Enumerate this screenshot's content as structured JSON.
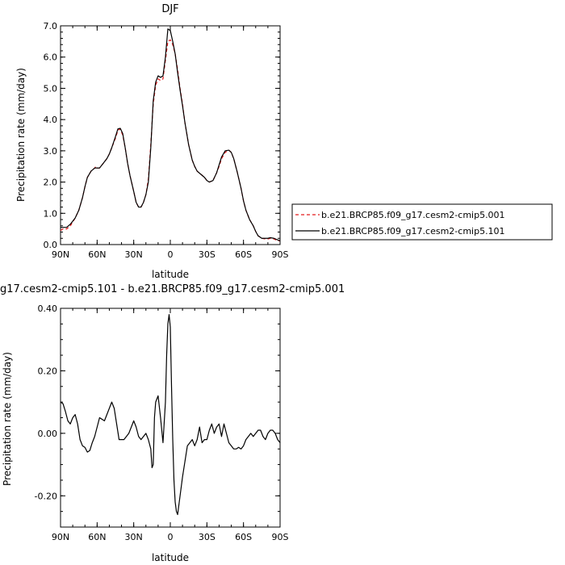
{
  "chart_data": [
    {
      "type": "line",
      "title": "DJF",
      "xlabel": "latitude",
      "ylabel": "Precipitation rate (mm/day)",
      "xlim": [
        90,
        -90
      ],
      "ylim": [
        0,
        7
      ],
      "x_ticks": [
        {
          "value": 90,
          "label": "90N"
        },
        {
          "value": 60,
          "label": "60N"
        },
        {
          "value": 30,
          "label": "30N"
        },
        {
          "value": 0,
          "label": "0"
        },
        {
          "value": -30,
          "label": "30S"
        },
        {
          "value": -60,
          "label": "60S"
        },
        {
          "value": -90,
          "label": "90S"
        }
      ],
      "y_ticks": [
        {
          "value": 0,
          "label": "0.0"
        },
        {
          "value": 1,
          "label": "1.0"
        },
        {
          "value": 2,
          "label": "2.0"
        },
        {
          "value": 3,
          "label": "3.0"
        },
        {
          "value": 4,
          "label": "4.0"
        },
        {
          "value": 5,
          "label": "5.0"
        },
        {
          "value": 6,
          "label": "6.0"
        },
        {
          "value": 7,
          "label": "7.0"
        }
      ],
      "legend_position": "right",
      "series": [
        {
          "name": "b.e21.BRCP85.f09_g17.cesm2-cmip5.001",
          "color": "#e41a1c",
          "dash": "dashed",
          "x": [
            90,
            88,
            85,
            82,
            80,
            78,
            75,
            72,
            70,
            68,
            65,
            62,
            61,
            60,
            58,
            55,
            52,
            50,
            48,
            45,
            43,
            41,
            39,
            37,
            35,
            33,
            30,
            28,
            26,
            24,
            22,
            20,
            18,
            16,
            14,
            12,
            10,
            8,
            6,
            4,
            2,
            0,
            -2,
            -4,
            -6,
            -8,
            -10,
            -12,
            -15,
            -18,
            -20,
            -22,
            -25,
            -28,
            -30,
            -32,
            -35,
            -38,
            -40,
            -42,
            -45,
            -48,
            -50,
            -52,
            -55,
            -58,
            -60,
            -62,
            -65,
            -68,
            -70,
            -72,
            -75,
            -78,
            -80,
            -82,
            -85,
            -88,
            -90
          ],
          "y": [
            0.45,
            0.5,
            0.5,
            0.6,
            0.72,
            0.85,
            1.1,
            1.5,
            1.85,
            2.15,
            2.35,
            2.45,
            2.5,
            2.45,
            2.45,
            2.6,
            2.75,
            2.9,
            3.1,
            3.4,
            3.65,
            3.7,
            3.5,
            3.1,
            2.6,
            2.2,
            1.7,
            1.35,
            1.2,
            1.2,
            1.35,
            1.6,
            2.1,
            3.2,
            4.5,
            5.1,
            5.3,
            5.25,
            5.3,
            5.9,
            6.5,
            6.55,
            6.4,
            6.1,
            5.6,
            5.0,
            4.5,
            3.9,
            3.2,
            2.7,
            2.5,
            2.35,
            2.25,
            2.15,
            2.05,
            2.0,
            2.05,
            2.3,
            2.5,
            2.75,
            2.95,
            3.02,
            2.95,
            2.75,
            2.3,
            1.8,
            1.4,
            1.1,
            0.8,
            0.6,
            0.42,
            0.28,
            0.2,
            0.18,
            0.18,
            0.2,
            0.18,
            0.12,
            0.12
          ]
        },
        {
          "name": "b.e21.BRCP85.f09_g17.cesm2-cmip5.101",
          "color": "#000000",
          "dash": "solid",
          "x": [
            90,
            88,
            85,
            82,
            80,
            78,
            75,
            72,
            70,
            68,
            65,
            62,
            61,
            60,
            58,
            55,
            52,
            50,
            48,
            45,
            43,
            41,
            39,
            37,
            35,
            33,
            30,
            28,
            26,
            24,
            22,
            20,
            18,
            16,
            14,
            12,
            10,
            8,
            6,
            4,
            2,
            0,
            -2,
            -4,
            -6,
            -8,
            -10,
            -12,
            -15,
            -18,
            -20,
            -22,
            -25,
            -28,
            -30,
            -32,
            -35,
            -38,
            -40,
            -42,
            -45,
            -48,
            -50,
            -52,
            -55,
            -58,
            -60,
            -62,
            -65,
            -68,
            -70,
            -72,
            -75,
            -78,
            -80,
            -82,
            -85,
            -88,
            -90
          ],
          "y": [
            0.55,
            0.55,
            0.55,
            0.65,
            0.75,
            0.85,
            1.1,
            1.5,
            1.85,
            2.15,
            2.35,
            2.45,
            2.45,
            2.45,
            2.45,
            2.6,
            2.75,
            2.9,
            3.1,
            3.45,
            3.7,
            3.72,
            3.55,
            3.1,
            2.6,
            2.2,
            1.7,
            1.35,
            1.2,
            1.2,
            1.35,
            1.6,
            2.0,
            3.1,
            4.6,
            5.2,
            5.4,
            5.35,
            5.4,
            6.0,
            6.9,
            6.85,
            6.5,
            6.1,
            5.5,
            4.95,
            4.45,
            3.9,
            3.2,
            2.7,
            2.5,
            2.35,
            2.25,
            2.15,
            2.05,
            2.0,
            2.05,
            2.3,
            2.55,
            2.8,
            3.0,
            3.02,
            2.95,
            2.75,
            2.3,
            1.8,
            1.4,
            1.1,
            0.8,
            0.6,
            0.42,
            0.28,
            0.2,
            0.2,
            0.2,
            0.22,
            0.2,
            0.15,
            0.12
          ]
        }
      ]
    },
    {
      "type": "line",
      "title": "g17.cesm2-cmip5.101 - b.e21.BRCP85.f09_g17.cesm2-cmip5.001",
      "xlabel": "latitude",
      "ylabel": "Precipitation rate (mm/day)",
      "xlim": [
        90,
        -90
      ],
      "ylim": [
        -0.3,
        0.4
      ],
      "x_ticks": [
        {
          "value": 90,
          "label": "90N"
        },
        {
          "value": 60,
          "label": "60N"
        },
        {
          "value": 30,
          "label": "30N"
        },
        {
          "value": 0,
          "label": "0"
        },
        {
          "value": -30,
          "label": "30S"
        },
        {
          "value": -60,
          "label": "60S"
        },
        {
          "value": -90,
          "label": "90S"
        }
      ],
      "y_ticks": [
        {
          "value": 0.4,
          "label": "0.40"
        },
        {
          "value": 0.2,
          "label": "0.20"
        },
        {
          "value": 0,
          "label": "0.00"
        },
        {
          "value": -0.2,
          "label": "-0.20"
        }
      ],
      "series": [
        {
          "color": "#000000",
          "dash": "solid",
          "x": [
            90,
            88,
            86,
            84,
            82,
            80,
            78,
            76,
            74,
            72,
            70,
            68,
            66,
            64,
            62,
            60,
            58,
            56,
            54,
            52,
            50,
            48,
            46,
            44,
            42,
            40,
            38,
            36,
            34,
            32,
            30,
            28,
            26,
            24,
            22,
            20,
            18,
            16,
            15,
            14,
            13,
            12,
            11,
            10,
            8,
            6,
            4,
            3,
            2,
            1,
            0,
            -1,
            -2,
            -3,
            -4,
            -5,
            -6,
            -8,
            -10,
            -12,
            -14,
            -16,
            -18,
            -20,
            -22,
            -24,
            -26,
            -28,
            -30,
            -32,
            -34,
            -36,
            -38,
            -40,
            -42,
            -44,
            -46,
            -48,
            -50,
            -52,
            -54,
            -56,
            -58,
            -60,
            -62,
            -64,
            -66,
            -68,
            -70,
            -72,
            -74,
            -76,
            -78,
            -80,
            -82,
            -84,
            -86,
            -88,
            -90
          ],
          "y": [
            0.1,
            0.095,
            0.07,
            0.04,
            0.03,
            0.05,
            0.06,
            0.03,
            -0.02,
            -0.04,
            -0.045,
            -0.06,
            -0.055,
            -0.03,
            -0.01,
            0.02,
            0.05,
            0.045,
            0.04,
            0.06,
            0.08,
            0.1,
            0.08,
            0.03,
            -0.02,
            -0.02,
            -0.02,
            -0.01,
            0.0,
            0.02,
            0.04,
            0.02,
            -0.01,
            -0.02,
            -0.01,
            0.0,
            -0.02,
            -0.05,
            -0.11,
            -0.1,
            0.05,
            0.1,
            0.11,
            0.12,
            0.05,
            -0.03,
            0.1,
            0.25,
            0.35,
            0.38,
            0.34,
            0.15,
            -0.02,
            -0.15,
            -0.22,
            -0.25,
            -0.26,
            -0.2,
            -0.14,
            -0.09,
            -0.04,
            -0.03,
            -0.02,
            -0.04,
            -0.02,
            0.02,
            -0.03,
            -0.02,
            -0.02,
            0.01,
            0.03,
            0.0,
            0.02,
            0.03,
            -0.01,
            0.03,
            0.0,
            -0.03,
            -0.04,
            -0.05,
            -0.05,
            -0.045,
            -0.05,
            -0.04,
            -0.02,
            -0.01,
            0.0,
            -0.01,
            0.0,
            0.01,
            0.01,
            -0.01,
            -0.02,
            0.0,
            0.01,
            0.01,
            0.0,
            -0.02,
            -0.03
          ]
        }
      ]
    }
  ]
}
